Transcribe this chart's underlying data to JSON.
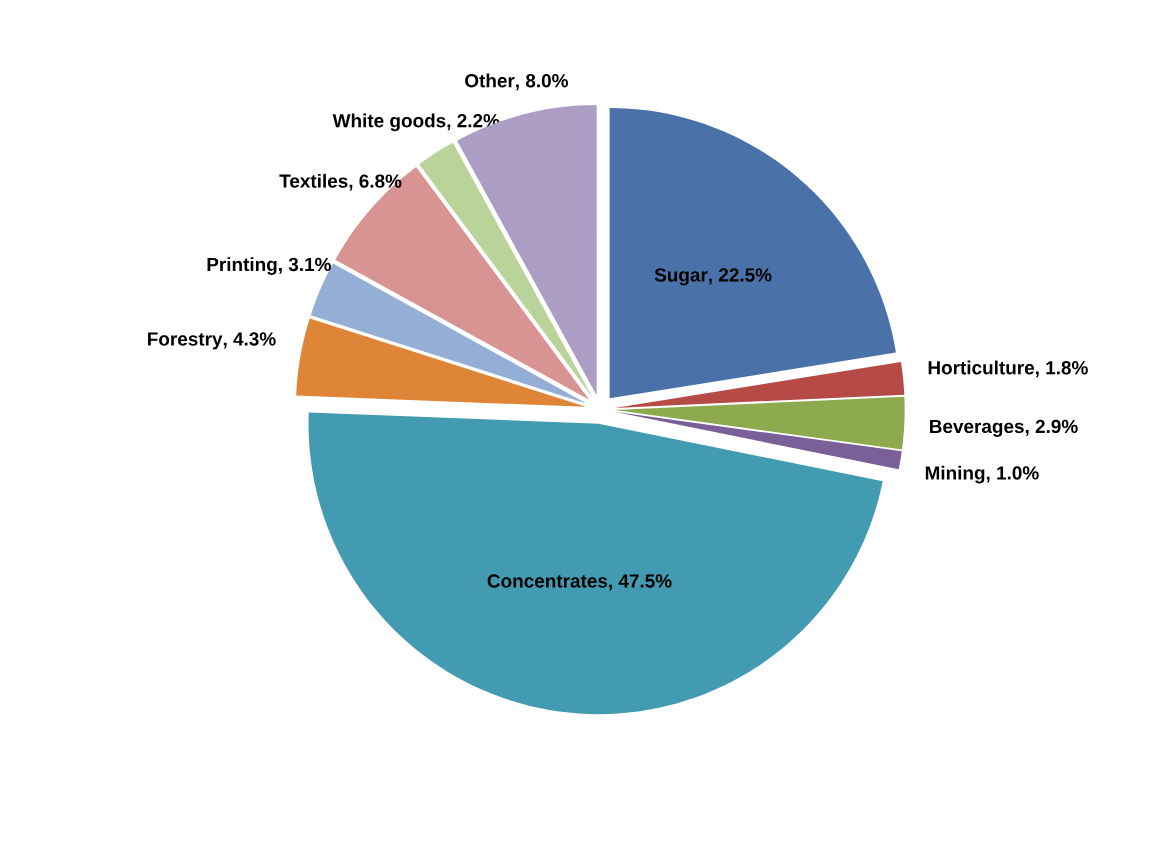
{
  "chart_data": {
    "type": "pie",
    "categories": [
      "Sugar",
      "Horticulture",
      "Beverages",
      "Mining",
      "Concentrates",
      "Forestry",
      "Printing",
      "Textiles",
      "White goods",
      "Other"
    ],
    "values": [
      22.5,
      1.8,
      2.9,
      1.0,
      47.5,
      4.3,
      3.1,
      6.8,
      2.2,
      8.0
    ],
    "value_labels": [
      ", 22.5%",
      ", 1.8%",
      ", 2.9%",
      ", 1.0%",
      ", 47.5%",
      ", 4.3%",
      ", 3.1%",
      ", 6.8%",
      ", 2.2%",
      ", 8.0%"
    ],
    "colors": [
      "#4a72a8",
      "#b54a47",
      "#8eaa4f",
      "#7a5f99",
      "#429bb0",
      "#de8538",
      "#95aed6",
      "#d89493",
      "#b9d39a",
      "#ab9dc3"
    ]
  }
}
